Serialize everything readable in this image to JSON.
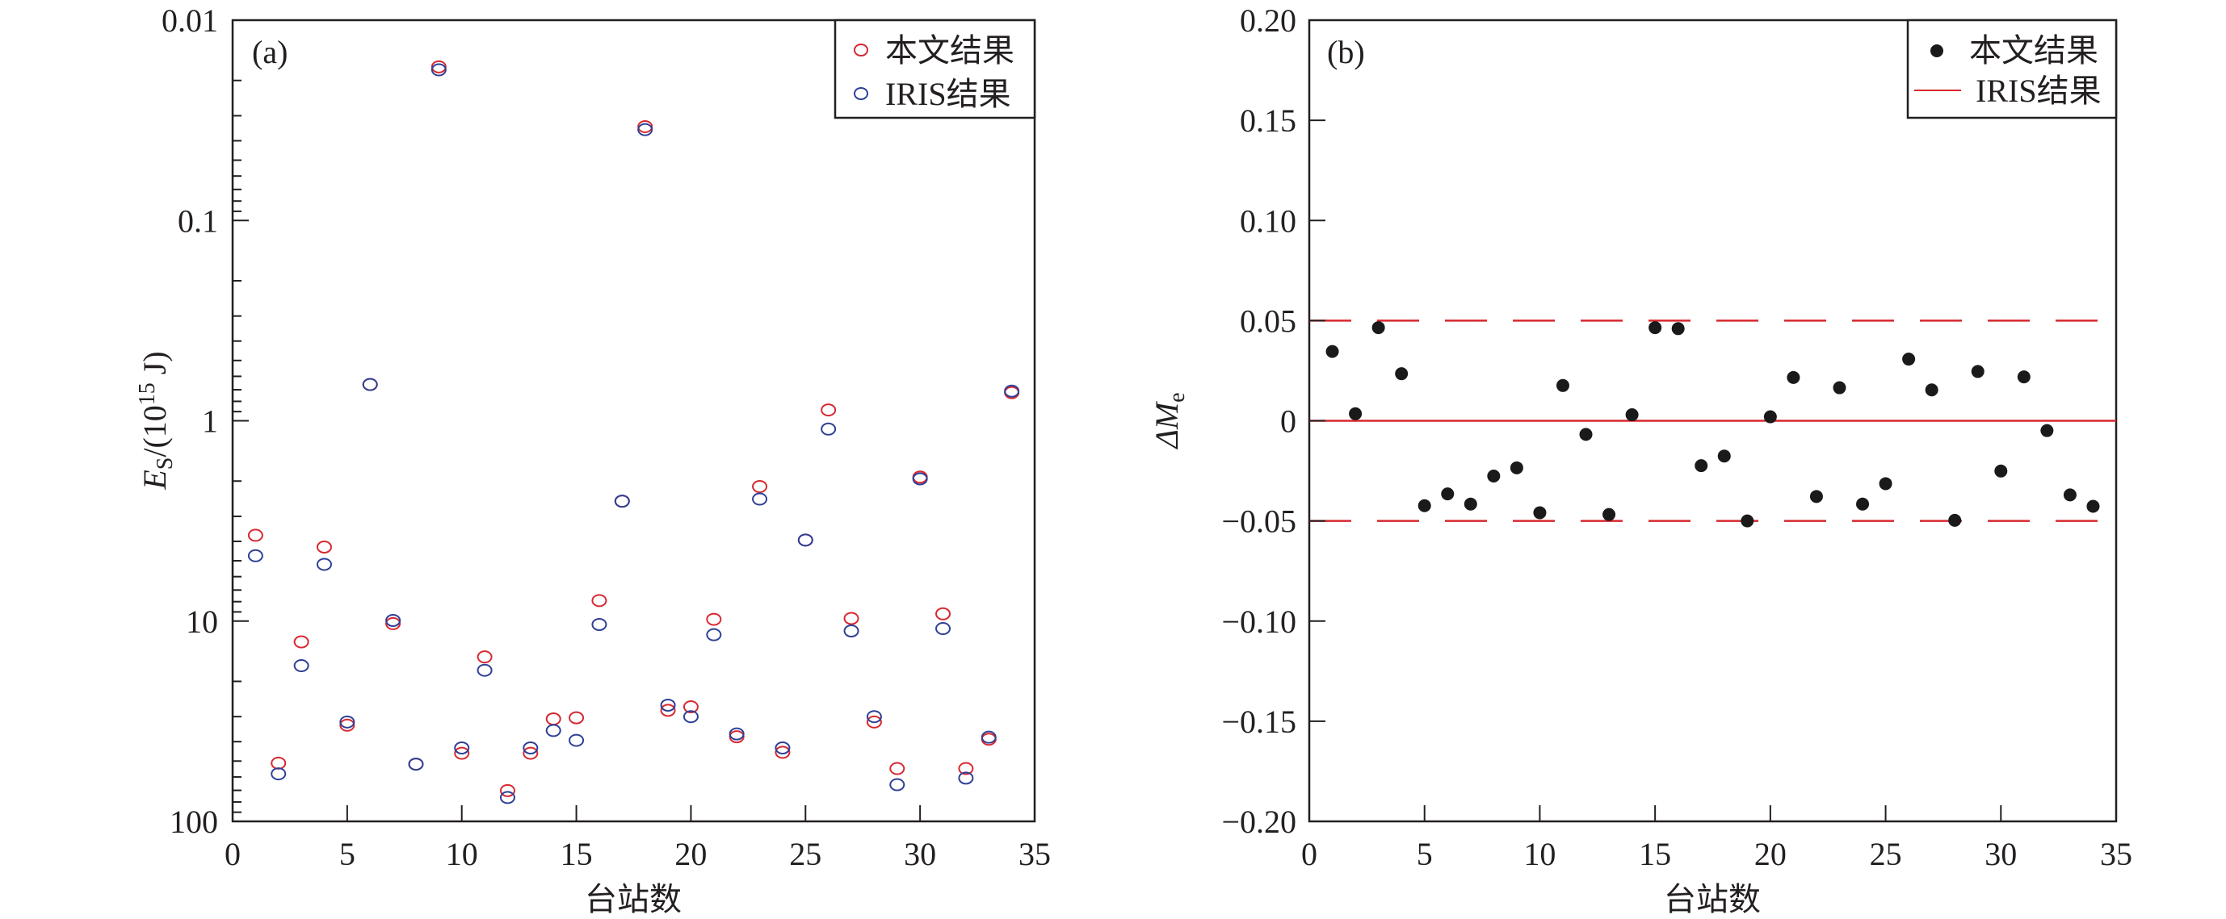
{
  "chart_data": [
    {
      "type": "scatter",
      "panel_label": "(a)",
      "xlabel": "台站数",
      "ylabel": {
        "main": "E",
        "sub": "S",
        "rest": "/(10",
        "sup": "15",
        "unit": " J)"
      },
      "xlim": [
        0,
        35
      ],
      "xticks": [
        "0",
        "5",
        "10",
        "15",
        "20",
        "25",
        "30",
        "35"
      ],
      "ylim": [
        0.01,
        100
      ],
      "yscale": "log",
      "yaxis_inverted": true,
      "yticks": [
        "0.01",
        "0.1",
        "1",
        "10",
        "100"
      ],
      "legend": {
        "position": "top-right",
        "entries": [
          "本文结果",
          "IRIS结果"
        ]
      },
      "colors": {
        "this_study": "#d7282f",
        "iris": "#2e3f96"
      },
      "x": [
        1,
        2,
        3,
        4,
        5,
        6,
        7,
        8,
        9,
        10,
        11,
        12,
        13,
        14,
        15,
        16,
        17,
        18,
        19,
        20,
        21,
        22,
        23,
        24,
        25,
        26,
        27,
        28,
        29,
        30,
        31,
        32,
        33,
        34
      ],
      "series": [
        {
          "name": "本文结果",
          "values": [
            3.73,
            51.2,
            12.7,
            4.27,
            33.1,
            0.659,
            10.3,
            51.8,
            0.0171,
            45.7,
            15.1,
            70.2,
            45.7,
            30.8,
            30.4,
            7.9,
            2.52,
            0.034,
            27.9,
            26.8,
            9.8,
            37.8,
            2.13,
            45.2,
            3.94,
            0.883,
            9.7,
            31.9,
            54.5,
            1.91,
            9.2,
            54.5,
            38.9,
            0.724
          ]
        },
        {
          "name": "IRIS结果",
          "values": [
            4.72,
            57.9,
            16.7,
            5.21,
            31.9,
            0.659,
            9.93,
            51.8,
            0.0177,
            43.0,
            17.6,
            76.0,
            43.0,
            35.2,
            39.4,
            10.4,
            2.52,
            0.0352,
            26.3,
            30.0,
            11.7,
            36.6,
            2.46,
            43.0,
            3.94,
            1.1,
            11.2,
            30.0,
            65.6,
            1.95,
            10.9,
            60.8,
            38.0,
            0.711
          ]
        }
      ]
    },
    {
      "type": "scatter",
      "panel_label": "(b)",
      "xlabel": "台站数",
      "ylabel": {
        "main": "ΔM",
        "sub": "e"
      },
      "xlim": [
        0,
        35
      ],
      "xticks": [
        "0",
        "5",
        "10",
        "15",
        "20",
        "25",
        "30",
        "35"
      ],
      "ylim": [
        -0.2,
        0.2
      ],
      "yticks": [
        "0.20",
        "0.15",
        "0.10",
        "0.05",
        "0",
        "−0.05",
        "−0.10",
        "−0.15",
        "−0.20"
      ],
      "ytick_values": [
        0.2,
        0.15,
        0.1,
        0.05,
        0,
        -0.05,
        -0.1,
        -0.15,
        -0.2
      ],
      "legend": {
        "position": "top-right",
        "entries": [
          "本文结果",
          "IRIS结果"
        ]
      },
      "colors": {
        "points": "#1a1a1a",
        "line": "#d7282f"
      },
      "reference_line": 0,
      "dashed_bounds": [
        0.05,
        -0.05
      ],
      "x": [
        1,
        2,
        3,
        4,
        5,
        6,
        7,
        8,
        9,
        10,
        11,
        12,
        13,
        14,
        15,
        16,
        17,
        18,
        19,
        20,
        21,
        22,
        23,
        24,
        25,
        26,
        27,
        28,
        29,
        30,
        31,
        32,
        33,
        34
      ],
      "series": [
        {
          "name": "本文结果",
          "values": [
            0.0346,
            0.0035,
            0.0465,
            0.0235,
            -0.0424,
            -0.0365,
            -0.0416,
            -0.0276,
            -0.0235,
            -0.0459,
            0.0176,
            -0.0068,
            -0.0468,
            0.003,
            0.0465,
            0.046,
            -0.0224,
            -0.0176,
            -0.05,
            0.002,
            0.0216,
            -0.0378,
            0.0165,
            -0.0416,
            -0.0314,
            0.0308,
            0.0154,
            -0.0497,
            0.0246,
            -0.0251,
            0.0219,
            -0.0049,
            -0.037,
            -0.0427
          ]
        }
      ]
    }
  ]
}
